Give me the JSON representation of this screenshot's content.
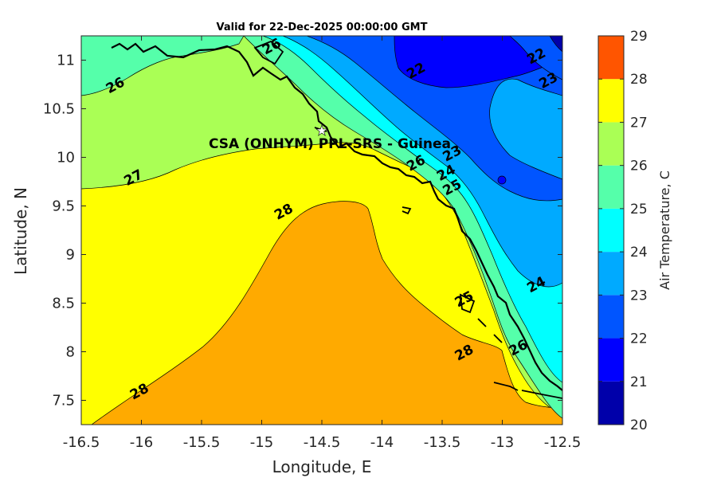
{
  "title": "Valid for 22-Dec-2025 00:00:00 GMT",
  "station_label": "CSA (ONHYM) PPL-SRS  - Guinea",
  "xlabel": "Longitude, E",
  "ylabel": "Latitude, N",
  "colorbar_label": "Air Temperature, C",
  "x_ticks": [
    "-16.5",
    "-16",
    "-15.5",
    "-15",
    "-14.5",
    "-14",
    "-13.5",
    "-13",
    "-12.5"
  ],
  "y_ticks": [
    "11",
    "10.5",
    "10",
    "9.5",
    "9",
    "8.5",
    "8",
    "7.5"
  ],
  "colorbar_ticks": [
    "20",
    "21",
    "22",
    "23",
    "24",
    "25",
    "26",
    "27",
    "28",
    "29"
  ],
  "colors": {
    "20-21": "#0000aa",
    "21-22": "#0000ff",
    "22-23": "#0055ff",
    "23-24": "#00aaff",
    "24-25": "#00ffff",
    "25-26": "#55ffaa",
    "26-27": "#aaff55",
    "27-28": "#ffff00",
    "28-29": "#ffaa00",
    "29+": "#ff5500"
  },
  "chart_data": {
    "type": "contour",
    "title": "Valid for 22-Dec-2025 00:00:00 GMT",
    "xlabel": "Longitude, E",
    "ylabel": "Latitude, N",
    "xlim": [
      -16.5,
      -12.5
    ],
    "ylim": [
      7.25,
      11.25
    ],
    "variable": "Air Temperature, C",
    "color_levels": [
      20,
      21,
      22,
      23,
      24,
      25,
      26,
      27,
      28,
      29
    ],
    "contour_labels": [
      {
        "value": "26",
        "lon": -16.2,
        "lat": 10.7
      },
      {
        "value": "26",
        "lon": -14.9,
        "lat": 11.1
      },
      {
        "value": "27",
        "lon": -16.05,
        "lat": 9.75
      },
      {
        "value": "28",
        "lon": -14.8,
        "lat": 9.4
      },
      {
        "value": "28",
        "lon": -16.0,
        "lat": 7.55
      },
      {
        "value": "28",
        "lon": -13.3,
        "lat": 7.95
      },
      {
        "value": "22",
        "lon": -13.7,
        "lat": 10.85
      },
      {
        "value": "22",
        "lon": -12.7,
        "lat": 11.0
      },
      {
        "value": "23",
        "lon": -12.6,
        "lat": 10.75
      },
      {
        "value": "23",
        "lon": -13.4,
        "lat": 10.0
      },
      {
        "value": "24",
        "lon": -13.45,
        "lat": 9.8
      },
      {
        "value": "25",
        "lon": -13.4,
        "lat": 9.65
      },
      {
        "value": "26",
        "lon": -13.7,
        "lat": 9.9
      },
      {
        "value": "24",
        "lon": -12.7,
        "lat": 8.65
      },
      {
        "value": "25",
        "lon": -13.3,
        "lat": 8.5
      },
      {
        "value": "26",
        "lon": -12.85,
        "lat": 8.0
      }
    ],
    "station": {
      "name": "CSA (ONHYM) PPL-SRS  - Guinea",
      "lon": -14.5,
      "lat": 10.3
    }
  }
}
